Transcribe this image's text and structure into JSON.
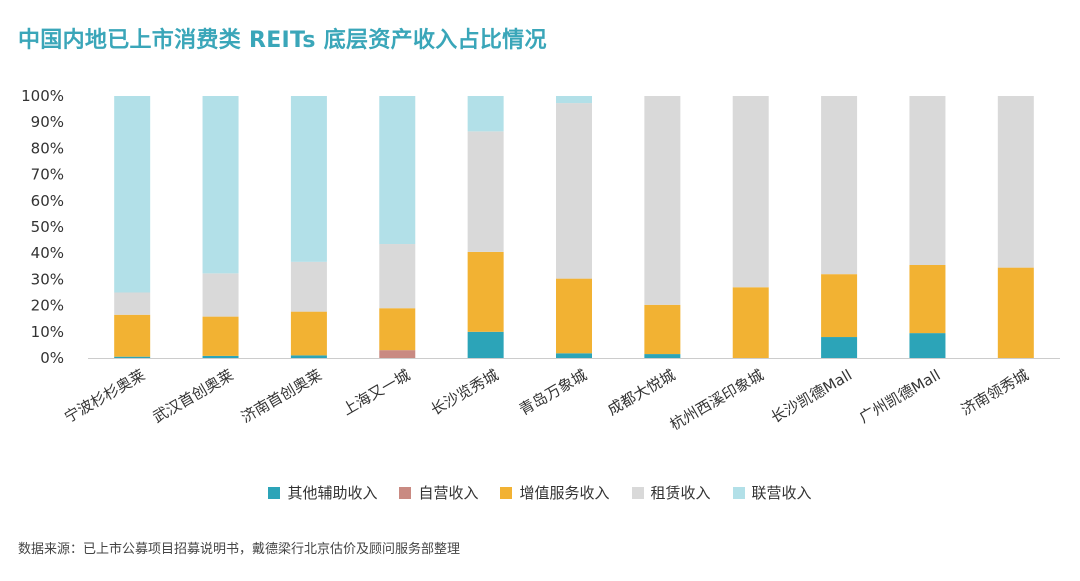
{
  "chart_data": {
    "type": "stacked-bar",
    "title": "中国内地已上市消费类 REITs 底层资产收入占比情况",
    "source": "数据来源：已上市公募项目招募说明书，戴德梁行北京估价及顾问服务部整理",
    "ylim": [
      0,
      100
    ],
    "yticks": [
      "0%",
      "10%",
      "20%",
      "30%",
      "40%",
      "50%",
      "60%",
      "70%",
      "80%",
      "90%",
      "100%"
    ],
    "categories": [
      "宁波杉杉奥莱",
      "武汉首创奥莱",
      "济南首创奥莱",
      "上海又一城",
      "长沙览秀城",
      "青岛万象城",
      "成都大悦城",
      "杭州西溪印象城",
      "长沙凯德Mall",
      "广州凯德Mall",
      "济南领秀城"
    ],
    "series": [
      {
        "name": "其他辅助收入",
        "color": "#2ca4b8",
        "values": [
          0.5,
          0.8,
          1.0,
          0,
          10.0,
          1.8,
          1.5,
          0,
          8.0,
          9.5,
          0
        ]
      },
      {
        "name": "自营收入",
        "color": "#c98a82",
        "values": [
          0,
          0,
          0,
          3.0,
          0,
          0,
          0,
          0,
          0,
          0,
          0
        ]
      },
      {
        "name": "增值服务收入",
        "color": "#f2b233",
        "values": [
          16.0,
          15.0,
          16.7,
          16.0,
          30.5,
          28.5,
          18.8,
          27.0,
          24.0,
          26.0,
          34.5
        ]
      },
      {
        "name": "租赁收入",
        "color": "#d9d9d9",
        "values": [
          8.5,
          16.5,
          19.0,
          24.5,
          46.0,
          67.0,
          79.7,
          73.0,
          68.0,
          64.5,
          65.5
        ]
      },
      {
        "name": "联营收入",
        "color": "#b2e0e8",
        "values": [
          75.0,
          67.7,
          63.3,
          56.5,
          13.5,
          2.7,
          0,
          0,
          0,
          0,
          0
        ]
      }
    ]
  }
}
